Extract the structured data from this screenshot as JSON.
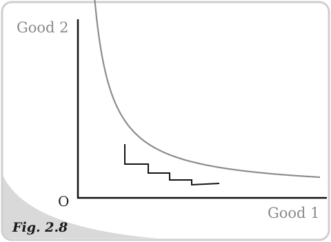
{
  "figure": {
    "caption": "Fig. 2.8",
    "y_axis_label": "Good 2",
    "x_axis_label": "Good 1",
    "origin_label": "O"
  },
  "colors": {
    "curve": "#8c8c8c",
    "staircase": "#111111",
    "axes": "#111111",
    "frame_border": "#cfcfcf",
    "corner_wedge": "#d9d9d9",
    "label_text": "#8a8a8a"
  },
  "diagram": {
    "type": "indifference-curve-with-staircase",
    "curve": "rectangular hyperbola (convex to origin)",
    "staircase_steps": 4
  }
}
